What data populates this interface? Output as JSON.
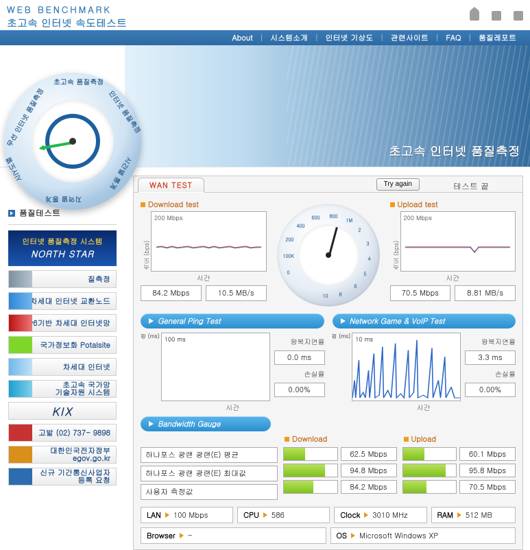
{
  "brand": {
    "line1": "WEB BENCHMARK",
    "line2": "초고속 인터넷 속도테스트"
  },
  "nav": {
    "items": [
      "About",
      "시스템소개",
      "인터넷 기상도",
      "관련사이트",
      "FAQ",
      "품질레포트"
    ]
  },
  "banner": {
    "title": "초고속 인터넷 품질측정"
  },
  "main_gauge": {
    "segments": [
      "초고속 품질측정",
      "인터넷 품질측정",
      "무선 인터넷 품질측정",
      "지역별 통계",
      "시간별 통계",
      "시IY도별"
    ],
    "ticks": [
      "0",
      "100K",
      "200",
      "400",
      "600",
      "800",
      "1M",
      "2",
      "3",
      "4",
      "5",
      "6",
      "8",
      "10"
    ],
    "needle_deg": 170
  },
  "sidebar": {
    "title": "품질테스트",
    "north_star": {
      "l1": "인터넷 품질측정 시스템",
      "l2": "NORTH STAR"
    },
    "items": [
      {
        "label": "질측정",
        "accent": "acc-dim"
      },
      {
        "label": "차세대 인터넷 교환노드",
        "accent": "acc-blue"
      },
      {
        "label": "IPv6기반 차세대 인터넷망",
        "accent": "acc-red"
      },
      {
        "label": "국가정보화 Potalsite",
        "accent": "acc-green"
      },
      {
        "label": "차세대 인터넷",
        "accent": "acc-sky"
      },
      {
        "label": "초고속 국가망\n기술자원 시스템",
        "accent": "acc-cyan"
      },
      {
        "label": "KIX",
        "accent": "",
        "kix": true
      },
      {
        "label": "고발 (02) 737- 9898",
        "accent": "acc-redbar"
      },
      {
        "label": "대한민국전자정부\negov.go.kr",
        "accent": "acc-orange"
      },
      {
        "label": "신규 기간통신사업자\n등록 요청",
        "accent": "acc-bluebar"
      }
    ]
  },
  "wan": {
    "tab": "WAN TEST",
    "try_again": "Try again",
    "end_label": "테스트 끝",
    "download": {
      "title": "Download test",
      "ycap": "200 Mbps",
      "ylab": "속도 (bps)",
      "xlab": "시간",
      "readouts": [
        "84.2 Mbps",
        "10.5 MB/s"
      ],
      "line_colors": [
        "#d1452a",
        "#2e67c9"
      ]
    },
    "upload": {
      "title": "Upload test",
      "ycap": "200 Mbps",
      "ylab": "속도 (bps)",
      "xlab": "시간",
      "readouts": [
        "70.5 Mbps",
        "8.81 MB/s"
      ],
      "line_colors": [
        "#d1452a",
        "#2e67c9"
      ]
    },
    "center_gauge": {
      "ticks": [
        "0",
        "100K",
        "200",
        "400",
        "600",
        "800",
        "1M",
        "2",
        "3",
        "4",
        "5",
        "6",
        "8",
        "10"
      ],
      "needle_deg": 195
    },
    "pill_general": "General Ping Test",
    "pill_game": "Network Game & VoIP Test",
    "ping_general": {
      "ycap": "100 ms",
      "yunit": "핑 (ms)",
      "xlab": "시간",
      "rtt_label": "왕복지연율",
      "rtt_value": "0.0 ms",
      "loss_label": "손실율",
      "loss_value": "0.00%",
      "line_color": "#2e67c9"
    },
    "ping_game": {
      "ycap": "10 ms",
      "yunit": "핑 (ms)",
      "xlab": "시간",
      "rtt_label": "왕복지연율",
      "rtt_value": "3.3 ms",
      "loss_label": "손실율",
      "loss_value": "0.00%",
      "line_color": "#2e67c9"
    },
    "bandwidth": {
      "title": "Bandwidth Gauge",
      "dl_head": "Download",
      "ul_head": "Upload",
      "rows": [
        {
          "label": "하나포스 광랜 광랜(E) 평균",
          "dl_val": "62.5 Mbps",
          "dl_pct": 40,
          "ul_val": "60.1 Mbps",
          "ul_pct": 40
        },
        {
          "label": "하나포스 광랜 광랜(E) 최대값",
          "dl_val": "94.8 Mbps",
          "dl_pct": 78,
          "ul_val": "95.8 Mbps",
          "ul_pct": 80
        },
        {
          "label": "사용자 측정값",
          "dl_val": "84.2 Mbps",
          "dl_pct": 56,
          "ul_val": "70.5 Mbps",
          "ul_pct": 45
        }
      ],
      "bar_color": "#8cc63f"
    },
    "sys": {
      "lan": {
        "key": "LAN",
        "val": "100 Mbps"
      },
      "cpu": {
        "key": "CPU",
        "val": "586"
      },
      "clock": {
        "key": "Clock",
        "val": "3010 MHz"
      },
      "ram": {
        "key": "RAM",
        "val": "512 MB"
      },
      "browser": {
        "key": "Browser",
        "val": "-"
      },
      "os": {
        "key": "OS",
        "val": "Microsoft Windows XP"
      }
    }
  },
  "colors": {
    "nav_bg": "#2f6ea8",
    "accent_orange": "#e09a1a",
    "pill_blue": "#2b8fd0"
  }
}
